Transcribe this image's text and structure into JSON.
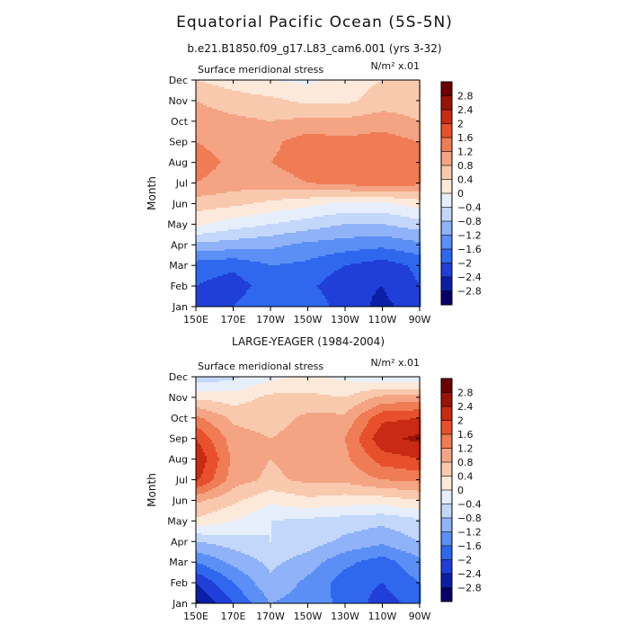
{
  "figure": {
    "title": "Equatorial Pacific Ocean (5S-5N)",
    "subtitle": "b.e21.B1850.f09_g17.L83_cam6.001 (yrs 3-32)"
  },
  "chart_data": [
    {
      "type": "heatmap",
      "panel_label": "",
      "left_title": "Surface meridional stress",
      "right_title": "N/m² x.01",
      "xlabel": "",
      "ylabel": "Month",
      "x_tick_labels": [
        "150E",
        "170E",
        "170W",
        "150W",
        "130W",
        "110W",
        "90W"
      ],
      "x_range_deg_east": [
        150,
        270
      ],
      "y_tick_labels": [
        "Jan",
        "Feb",
        "Mar",
        "Apr",
        "May",
        "Jun",
        "Jul",
        "Aug",
        "Sep",
        "Oct",
        "Nov",
        "Dec"
      ],
      "contour_levels": [
        -2.8,
        -2.4,
        -2,
        -1.6,
        -1.2,
        -0.8,
        -0.4,
        0,
        0.4,
        0.8,
        1.2,
        1.6,
        2,
        2.4,
        2.8
      ],
      "colorbar_labels": [
        "2.8",
        "2.4",
        "2",
        "1.6",
        "1.2",
        "0.8",
        "0.4",
        "0",
        "−0.4",
        "−0.8",
        "−1.2",
        "−1.6",
        "−2",
        "−2.4",
        "−2.8"
      ],
      "colors": [
        "#08006a",
        "#0a1fa6",
        "#1f3fd8",
        "#2f68ee",
        "#5b8ff5",
        "#8fb2f8",
        "#c3d7fb",
        "#e6eefc",
        "#fde9da",
        "#f9c9ae",
        "#f4a483",
        "#ef7c55",
        "#e7502b",
        "#c82a13",
        "#9b1304",
        "#6c0000"
      ],
      "grid_lon": [
        150,
        170,
        190,
        210,
        230,
        250,
        270
      ],
      "grid_months": [
        "Jan",
        "Feb",
        "Mar",
        "Apr",
        "May",
        "Jun",
        "Jul",
        "Aug",
        "Sep",
        "Oct",
        "Nov",
        "Dec"
      ],
      "values": [
        [
          -2.2,
          -2.0,
          -1.6,
          -1.7,
          -2.2,
          -2.5,
          -2.2
        ],
        [
          -2.0,
          -2.2,
          -1.8,
          -1.9,
          -2.3,
          -2.4,
          -2.0
        ],
        [
          -1.8,
          -1.9,
          -1.6,
          -1.7,
          -2.0,
          -2.2,
          -1.9
        ],
        [
          -0.9,
          -1.0,
          -1.1,
          -1.3,
          -1.4,
          -1.5,
          -1.3
        ],
        [
          0.1,
          -0.2,
          -0.4,
          -0.6,
          -0.8,
          -0.8,
          -0.6
        ],
        [
          0.6,
          0.5,
          0.3,
          0.1,
          -0.1,
          -0.1,
          0.2
        ],
        [
          1.2,
          1.0,
          1.0,
          1.2,
          1.3,
          1.5,
          1.3
        ],
        [
          1.4,
          1.1,
          1.2,
          1.4,
          1.4,
          1.6,
          1.3
        ],
        [
          1.2,
          1.0,
          1.1,
          1.4,
          1.3,
          1.4,
          1.2
        ],
        [
          1.0,
          0.9,
          0.8,
          0.9,
          0.9,
          1.0,
          0.8
        ],
        [
          0.8,
          0.6,
          0.5,
          0.3,
          0.3,
          0.6,
          0.6
        ],
        [
          0.4,
          0.2,
          0.0,
          -0.1,
          0.2,
          0.4,
          0.4
        ]
      ]
    },
    {
      "type": "heatmap",
      "panel_label": "LARGE-YEAGER (1984-2004)",
      "left_title": "Surface meridional stress",
      "right_title": "N/m² x.01",
      "xlabel": "",
      "ylabel": "Month",
      "x_tick_labels": [
        "150E",
        "170E",
        "170W",
        "150W",
        "130W",
        "110W",
        "90W"
      ],
      "x_range_deg_east": [
        150,
        270
      ],
      "y_tick_labels": [
        "Jan",
        "Feb",
        "Mar",
        "Apr",
        "May",
        "Jun",
        "Jul",
        "Aug",
        "Sep",
        "Oct",
        "Nov",
        "Dec"
      ],
      "contour_levels": [
        -2.8,
        -2.4,
        -2,
        -1.6,
        -1.2,
        -0.8,
        -0.4,
        0,
        0.4,
        0.8,
        1.2,
        1.6,
        2,
        2.4,
        2.8
      ],
      "colorbar_labels": [
        "2.8",
        "2.4",
        "2",
        "1.6",
        "1.2",
        "0.8",
        "0.4",
        "0",
        "−0.4",
        "−0.8",
        "−1.2",
        "−1.6",
        "−2",
        "−2.4",
        "−2.8"
      ],
      "colors": [
        "#08006a",
        "#0a1fa6",
        "#1f3fd8",
        "#2f68ee",
        "#5b8ff5",
        "#8fb2f8",
        "#c3d7fb",
        "#e6eefc",
        "#fde9da",
        "#f9c9ae",
        "#f4a483",
        "#ef7c55",
        "#e7502b",
        "#c82a13",
        "#9b1304",
        "#6c0000"
      ],
      "grid_lon": [
        150,
        170,
        190,
        210,
        230,
        250,
        270
      ],
      "grid_months": [
        "Jan",
        "Feb",
        "Mar",
        "Apr",
        "May",
        "Jun",
        "Jul",
        "Aug",
        "Sep",
        "Oct",
        "Nov",
        "Dec"
      ],
      "values": [
        [
          -2.9,
          -2.0,
          -1.2,
          -1.4,
          -1.7,
          -2.2,
          -1.8
        ],
        [
          -2.4,
          -1.6,
          -0.9,
          -1.3,
          -1.8,
          -2.0,
          -1.6
        ],
        [
          -1.6,
          -1.1,
          -0.7,
          -1.0,
          -1.5,
          -1.8,
          -1.3
        ],
        [
          -0.8,
          -0.6,
          -0.4,
          -0.6,
          -0.9,
          -1.1,
          -0.8
        ],
        [
          0.3,
          0.0,
          -0.4,
          -0.5,
          -0.6,
          -0.7,
          -0.5
        ],
        [
          0.9,
          0.5,
          0.1,
          0.3,
          0.2,
          0.2,
          0.4
        ],
        [
          2.1,
          1.0,
          0.7,
          0.9,
          0.9,
          1.2,
          1.3
        ],
        [
          2.4,
          1.1,
          0.8,
          1.0,
          1.1,
          1.8,
          2.0
        ],
        [
          2.0,
          1.0,
          0.8,
          1.0,
          1.2,
          2.3,
          2.5
        ],
        [
          1.3,
          0.7,
          0.6,
          0.9,
          0.9,
          1.9,
          2.0
        ],
        [
          0.3,
          0.2,
          0.5,
          0.5,
          0.4,
          0.9,
          1.0
        ],
        [
          -0.7,
          -0.5,
          -0.1,
          0.1,
          -0.1,
          -0.3,
          -0.4
        ]
      ]
    }
  ]
}
